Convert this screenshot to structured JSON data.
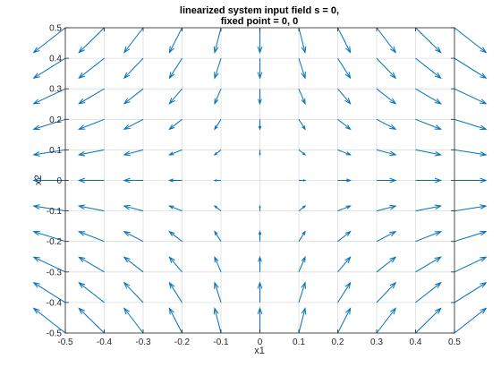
{
  "chart_data": {
    "type": "quiver",
    "title_lines": [
      "linearized system input field s = 0,",
      "fixed point = 0, 0"
    ],
    "xlabel": "x1",
    "ylabel": "x2",
    "xlim": [
      -0.5,
      0.5
    ],
    "ylim": [
      -0.5,
      0.5
    ],
    "xticks": [
      -0.5,
      -0.4,
      -0.3,
      -0.2,
      -0.1,
      0,
      0.1,
      0.2,
      0.3,
      0.4,
      0.5
    ],
    "yticks": [
      -0.5,
      -0.4,
      -0.3,
      -0.2,
      -0.1,
      0,
      0.1,
      0.2,
      0.3,
      0.4,
      0.5
    ],
    "xtick_labels": [
      "-0.5",
      "-0.4",
      "-0.3",
      "-0.2",
      "-0.1",
      "0",
      "0.1",
      "0.2",
      "0.3",
      "0.4",
      "0.5"
    ],
    "ytick_labels": [
      "-0.5",
      "-0.4",
      "-0.3",
      "-0.2",
      "-0.1",
      "0",
      "0.1",
      "0.2",
      "0.3",
      "0.4",
      "0.5"
    ],
    "grid": true,
    "arrow_color": "#0072BD",
    "field": {
      "u_equals": "x1",
      "v_equals": "-x2",
      "grid_x_range": [
        -0.5,
        0.5
      ],
      "grid_y_range": [
        -0.5,
        0.5
      ],
      "grid_step": 0.1
    }
  }
}
